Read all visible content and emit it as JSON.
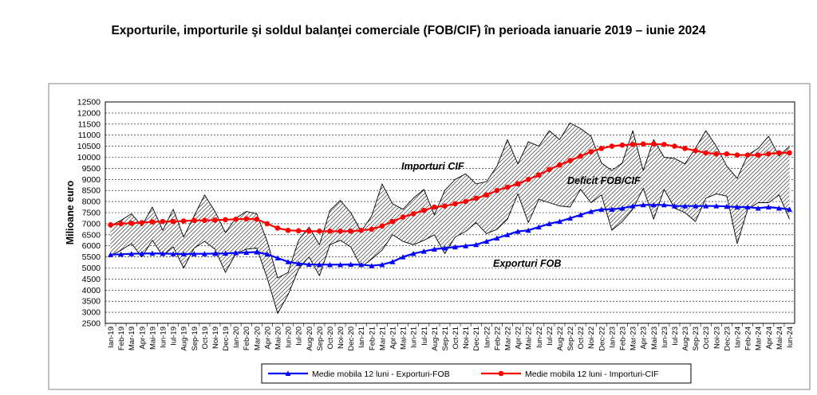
{
  "title": "Exporturile, importurile şi soldul balanţei comerciale (FOB/CIF) în perioada ianuarie 2019 – iunie 2024",
  "chart_data": {
    "type": "line",
    "ylabel": "Milioane  euro",
    "ylim": [
      2500,
      12500
    ],
    "ytick_step": 500,
    "grid": true,
    "legend_position": "bottom",
    "annotations": [
      "Importuri CIF",
      "Deficit FOB/CIF",
      "Exporturi FOB"
    ],
    "categories": [
      "Ian-19",
      "Feb-19",
      "Mar-19",
      "Apr-19",
      "Mai-19",
      "Iun-19",
      "Iul-19",
      "Aug-19",
      "Sep-19",
      "Oct-19",
      "Noi-19",
      "Dec-19",
      "Ian-20",
      "Feb-20",
      "Mar-20",
      "Apr-20",
      "Mai-20",
      "Iun-20",
      "Iul-20",
      "Aug-20",
      "Sep-20",
      "Oct-20",
      "Noi-20",
      "Dec-20",
      "Ian-21",
      "Feb-21",
      "Mar-21",
      "Apr-21",
      "Mai-21",
      "Iun-21",
      "Iul-21",
      "Aug-21",
      "Sep-21",
      "Oct-21",
      "Noi-21",
      "Dec-21",
      "Ian-22",
      "Feb-22",
      "Mar-22",
      "Apr-22",
      "Mai-22",
      "Iun-22",
      "Iul-22",
      "Aug-22",
      "Sep-22",
      "Oct-22",
      "Noi-22",
      "Dec-22",
      "Ian-23",
      "Feb-23",
      "Mar-23",
      "Apr-23",
      "Mai-23",
      "Iun-23",
      "Iul-23",
      "Aug-23",
      "Sep-23",
      "Oct-23",
      "Noi-23",
      "Dec-23",
      "Ian-24",
      "Feb-24",
      "Mar-24",
      "Apr-24",
      "Mai-24",
      "Iun-24"
    ],
    "series": [
      {
        "name": "Exporturi FOB (lunar)",
        "role": "monthly_export",
        "values": [
          5550,
          5800,
          6100,
          5500,
          6250,
          5550,
          5950,
          5000,
          5900,
          6200,
          5850,
          4800,
          5650,
          5850,
          5900,
          4550,
          2950,
          3800,
          4950,
          5500,
          4650,
          6050,
          6250,
          5950,
          5050,
          5400,
          5800,
          6500,
          6200,
          6050,
          6250,
          6500,
          5650,
          6400,
          6650,
          7050,
          6550,
          6750,
          7200,
          8350,
          7050,
          8100,
          7950,
          7800,
          7750,
          8550,
          7950,
          8300,
          6700,
          7100,
          7650,
          8600,
          7200,
          8550,
          7700,
          7500,
          7100,
          8150,
          8350,
          8250,
          6100,
          7650,
          7950,
          7950,
          8300,
          7200
        ]
      },
      {
        "name": "Importuri CIF (lunar)",
        "role": "monthly_import",
        "values": [
          6900,
          7150,
          7450,
          6900,
          7750,
          6700,
          7650,
          6400,
          7350,
          8300,
          7550,
          6600,
          7250,
          7550,
          7450,
          6200,
          4550,
          4800,
          6250,
          6850,
          6050,
          7600,
          8050,
          7500,
          6650,
          7350,
          8800,
          7900,
          7650,
          8150,
          8550,
          7400,
          8500,
          9000,
          9250,
          8800,
          8900,
          9600,
          10800,
          9700,
          10700,
          10500,
          11200,
          10800,
          11550,
          11300,
          10950,
          9750,
          9400,
          9750,
          11200,
          9400,
          10800,
          10000,
          9950,
          9700,
          10400,
          11200,
          10500,
          9600,
          9050,
          10100,
          10400,
          10950,
          10050,
          10500
        ]
      },
      {
        "name": "Medie mobila 12 luni - Exporturi-FOB",
        "role": "avg_export",
        "color": "#0000ff",
        "values": [
          5600,
          5620,
          5640,
          5650,
          5660,
          5650,
          5640,
          5630,
          5640,
          5640,
          5650,
          5660,
          5680,
          5700,
          5720,
          5620,
          5450,
          5280,
          5200,
          5160,
          5150,
          5150,
          5150,
          5160,
          5150,
          5100,
          5150,
          5280,
          5500,
          5650,
          5750,
          5850,
          5900,
          5950,
          6000,
          6050,
          6200,
          6350,
          6500,
          6650,
          6700,
          6850,
          7000,
          7100,
          7250,
          7400,
          7550,
          7650,
          7650,
          7700,
          7800,
          7850,
          7850,
          7850,
          7800,
          7800,
          7800,
          7800,
          7800,
          7780,
          7750,
          7750,
          7700,
          7750,
          7700,
          7650
        ]
      },
      {
        "name": "Medie mobila 12 luni - Importuri-CIF",
        "role": "avg_import",
        "color": "#ff0000",
        "values": [
          6950,
          7000,
          7020,
          7050,
          7080,
          7100,
          7100,
          7120,
          7150,
          7150,
          7160,
          7180,
          7200,
          7220,
          7200,
          7000,
          6800,
          6700,
          6680,
          6660,
          6660,
          6660,
          6660,
          6660,
          6700,
          6750,
          6900,
          7100,
          7300,
          7450,
          7600,
          7750,
          7800,
          7900,
          8000,
          8150,
          8300,
          8500,
          8650,
          8800,
          9000,
          9200,
          9450,
          9650,
          9850,
          10050,
          10250,
          10400,
          10500,
          10550,
          10580,
          10600,
          10600,
          10580,
          10500,
          10400,
          10300,
          10200,
          10150,
          10150,
          10100,
          10100,
          10100,
          10150,
          10200,
          10200
        ]
      }
    ],
    "legend": [
      "Medie mobila 12 luni - Exporturi-FOB",
      "Medie mobila 12 luni - Importuri-CIF"
    ]
  }
}
